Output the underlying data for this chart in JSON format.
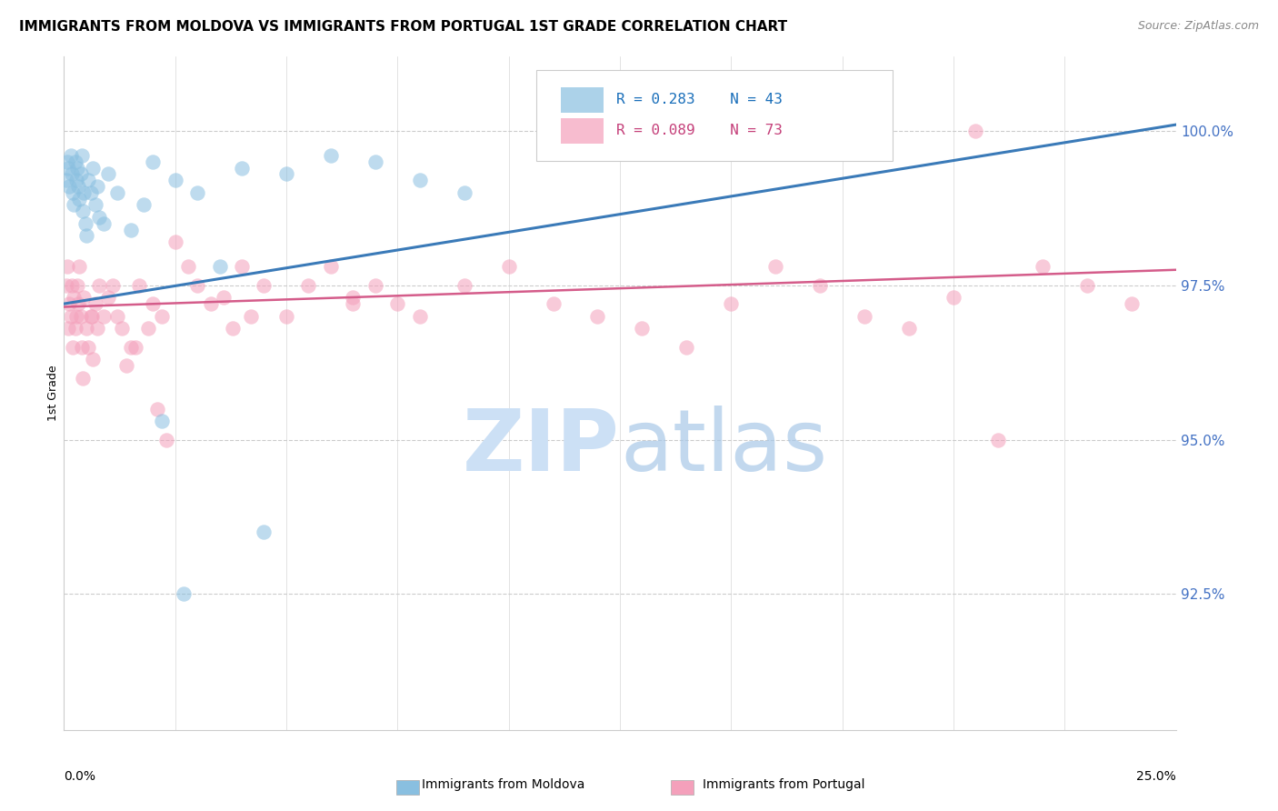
{
  "title": "IMMIGRANTS FROM MOLDOVA VS IMMIGRANTS FROM PORTUGAL 1ST GRADE CORRELATION CHART",
  "source": "Source: ZipAtlas.com",
  "ylabel": "1st Grade",
  "xlim": [
    0.0,
    25.0
  ],
  "ylim": [
    90.3,
    101.2
  ],
  "yticks": [
    92.5,
    95.0,
    97.5,
    100.0
  ],
  "ytick_labels": [
    "92.5%",
    "95.0%",
    "97.5%",
    "100.0%"
  ],
  "legend_blue_r": "R = 0.283",
  "legend_blue_n": "N = 43",
  "legend_pink_r": "R = 0.089",
  "legend_pink_n": "N = 73",
  "blue_color": "#89bfe0",
  "pink_color": "#f4a0bb",
  "blue_line_color": "#3a7ab8",
  "pink_line_color": "#d45c8a",
  "watermark_color": "#cce0f5",
  "moldova_x": [
    0.05,
    0.08,
    0.1,
    0.12,
    0.15,
    0.18,
    0.2,
    0.22,
    0.25,
    0.28,
    0.3,
    0.32,
    0.35,
    0.38,
    0.4,
    0.42,
    0.45,
    0.48,
    0.5,
    0.55,
    0.6,
    0.65,
    0.7,
    0.75,
    0.8,
    0.9,
    1.0,
    1.2,
    1.5,
    1.8,
    2.0,
    2.5,
    3.0,
    3.5,
    4.0,
    5.0,
    6.0,
    7.0,
    8.0,
    9.0,
    2.2,
    2.7,
    4.5
  ],
  "moldova_y": [
    99.2,
    99.5,
    99.4,
    99.1,
    99.6,
    99.3,
    99.0,
    98.8,
    99.5,
    99.2,
    99.4,
    99.1,
    98.9,
    99.3,
    99.6,
    98.7,
    99.0,
    98.5,
    98.3,
    99.2,
    99.0,
    99.4,
    98.8,
    99.1,
    98.6,
    98.5,
    99.3,
    99.0,
    98.4,
    98.8,
    99.5,
    99.2,
    99.0,
    97.8,
    99.4,
    99.3,
    99.6,
    99.5,
    99.2,
    99.0,
    95.3,
    92.5,
    93.5
  ],
  "portugal_x": [
    0.05,
    0.08,
    0.1,
    0.12,
    0.15,
    0.18,
    0.2,
    0.22,
    0.25,
    0.28,
    0.3,
    0.32,
    0.35,
    0.38,
    0.4,
    0.45,
    0.5,
    0.55,
    0.6,
    0.65,
    0.7,
    0.75,
    0.8,
    0.9,
    1.0,
    1.1,
    1.2,
    1.3,
    1.5,
    1.7,
    1.9,
    2.0,
    2.2,
    2.5,
    2.8,
    3.0,
    3.3,
    3.6,
    4.0,
    4.5,
    5.0,
    5.5,
    6.0,
    6.5,
    7.0,
    7.5,
    8.0,
    9.0,
    10.0,
    11.0,
    12.0,
    13.0,
    14.0,
    15.0,
    16.0,
    17.0,
    18.0,
    19.0,
    20.0,
    21.0,
    22.0,
    23.0,
    24.0,
    0.42,
    0.62,
    1.4,
    1.6,
    2.1,
    2.3,
    3.8,
    4.2,
    6.5,
    20.5
  ],
  "portugal_y": [
    97.5,
    97.8,
    96.8,
    97.2,
    97.0,
    97.5,
    96.5,
    97.3,
    96.8,
    97.0,
    97.5,
    97.2,
    97.8,
    97.0,
    96.5,
    97.3,
    96.8,
    96.5,
    97.0,
    96.3,
    97.2,
    96.8,
    97.5,
    97.0,
    97.3,
    97.5,
    97.0,
    96.8,
    96.5,
    97.5,
    96.8,
    97.2,
    97.0,
    98.2,
    97.8,
    97.5,
    97.2,
    97.3,
    97.8,
    97.5,
    97.0,
    97.5,
    97.8,
    97.3,
    97.5,
    97.2,
    97.0,
    97.5,
    97.8,
    97.2,
    97.0,
    96.8,
    96.5,
    97.2,
    97.8,
    97.5,
    97.0,
    96.8,
    97.3,
    95.0,
    97.8,
    97.5,
    97.2,
    96.0,
    97.0,
    96.2,
    96.5,
    95.5,
    95.0,
    96.8,
    97.0,
    97.2,
    100.0
  ]
}
